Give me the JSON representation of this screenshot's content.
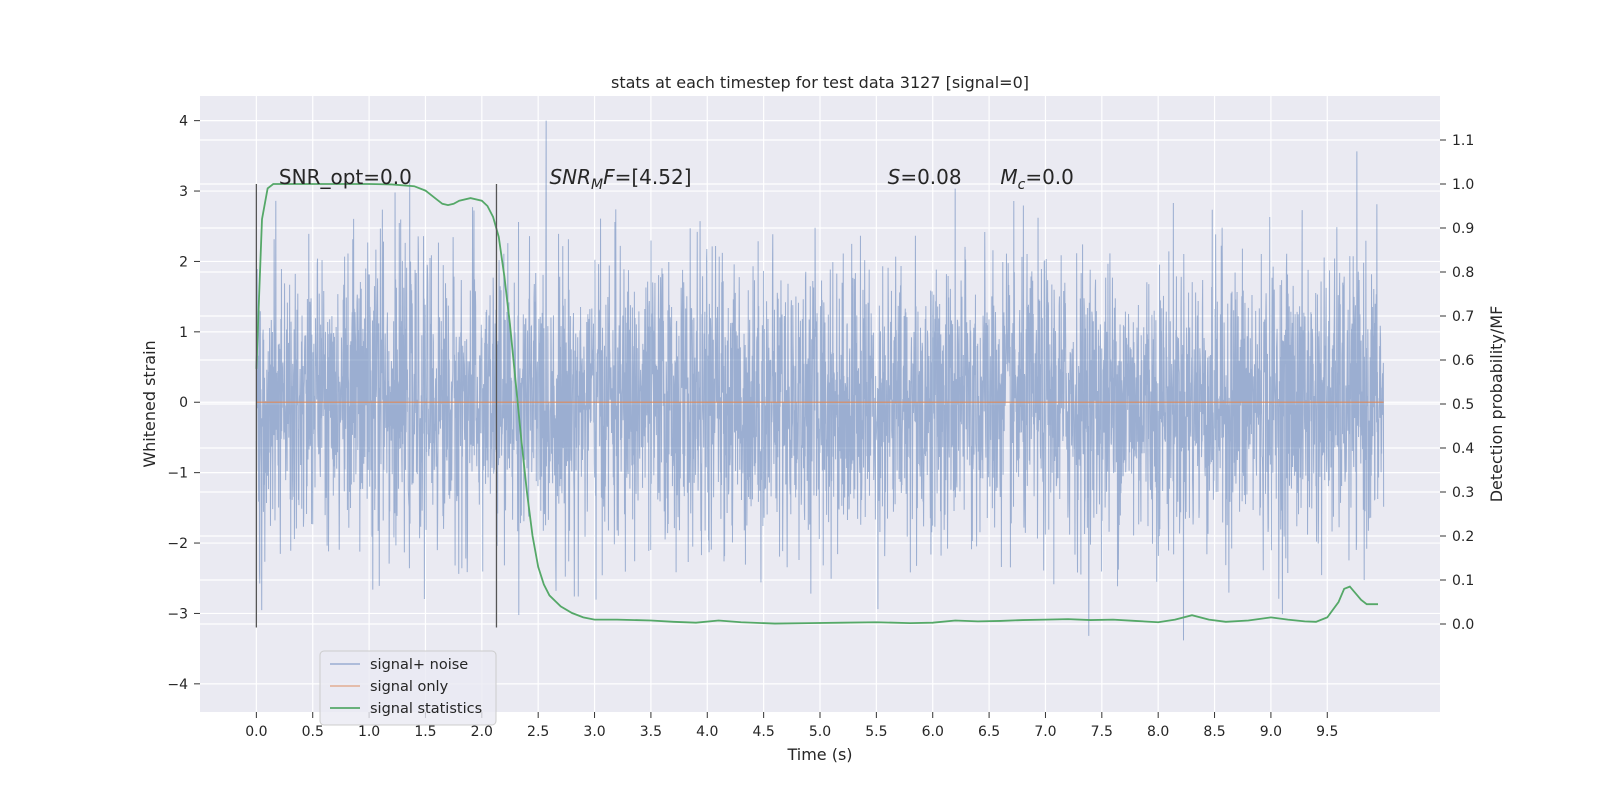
{
  "chart_data": {
    "type": "line",
    "title": "stats at each timestep for test data 3127 [signal=0]",
    "xlabel": "Time (s)",
    "ylabel": "Whitened strain",
    "ylabel_right": "Detection probability/MF",
    "xlim": [
      -0.5,
      10.5
    ],
    "ylim": [
      -4.4,
      4.35
    ],
    "ylim_right": [
      -0.2,
      1.2
    ],
    "x_ticks": [
      "0.0",
      "0.5",
      "1.0",
      "1.5",
      "2.0",
      "2.5",
      "3.0",
      "3.5",
      "4.0",
      "4.5",
      "5.0",
      "5.5",
      "6.0",
      "6.5",
      "7.0",
      "7.5",
      "8.0",
      "8.5",
      "9.0",
      "9.5"
    ],
    "y_ticks": [
      "4",
      "3",
      "2",
      "1",
      "0",
      "−1",
      "−2",
      "−3",
      "−4"
    ],
    "y_ticks_right": [
      "1.1",
      "1.0",
      "0.9",
      "0.8",
      "0.7",
      "0.6",
      "0.5",
      "0.4",
      "0.3",
      "0.2",
      "0.1",
      "0.0"
    ],
    "grid": true,
    "legend_placement": "lower-left",
    "annotations": [
      {
        "parts": [
          {
            "text": "SNR_opt=0.0",
            "italic": false
          }
        ],
        "x": 0.2,
        "y": 3.1
      },
      {
        "parts": [
          {
            "text": "SNR",
            "italic": true
          },
          {
            "text": "M",
            "italic": true,
            "sub": true
          },
          {
            "text": "F",
            "italic": true
          },
          {
            "text": "=[4.52]",
            "italic": false
          }
        ],
        "x": 2.6,
        "y": 3.1
      },
      {
        "parts": [
          {
            "text": "S",
            "italic": true
          },
          {
            "text": "=0.08",
            "italic": false
          }
        ],
        "x": 5.6,
        "y": 3.1
      },
      {
        "parts": [
          {
            "text": "M",
            "italic": true
          },
          {
            "text": "c",
            "italic": true,
            "sub": true
          },
          {
            "text": "=0.0",
            "italic": false
          }
        ],
        "x": 6.6,
        "y": 3.1
      }
    ],
    "vlines": [
      {
        "x": 0.0,
        "ymin": -3.2,
        "ymax": 3.1
      },
      {
        "x": 2.13,
        "ymin": -3.2,
        "ymax": 3.1
      }
    ],
    "series": [
      {
        "name": "signal+ noise",
        "color": "#4c72b0",
        "axis": "left",
        "style": "noise",
        "x_range": [
          0.0,
          10.0
        ],
        "sigma": 1.0
      },
      {
        "name": "signal only",
        "color": "#dd8452",
        "axis": "left",
        "x": [
          0.0,
          10.0
        ],
        "y": [
          0.0,
          0.0
        ]
      },
      {
        "name": "signal statistics",
        "color": "#55a868",
        "axis": "right",
        "x": [
          0.0,
          0.05,
          0.1,
          0.15,
          0.2,
          0.3,
          0.5,
          0.8,
          1.0,
          1.2,
          1.4,
          1.5,
          1.6,
          1.65,
          1.7,
          1.75,
          1.8,
          1.9,
          2.0,
          2.05,
          2.1,
          2.15,
          2.2,
          2.25,
          2.3,
          2.35,
          2.4,
          2.45,
          2.5,
          2.55,
          2.6,
          2.7,
          2.8,
          2.9,
          3.0,
          3.2,
          3.5,
          3.7,
          3.9,
          4.1,
          4.3,
          4.6,
          4.9,
          5.2,
          5.5,
          5.8,
          6.0,
          6.2,
          6.4,
          6.6,
          6.8,
          7.0,
          7.2,
          7.4,
          7.6,
          7.8,
          8.0,
          8.15,
          8.3,
          8.45,
          8.6,
          8.8,
          9.0,
          9.15,
          9.3,
          9.4,
          9.5,
          9.6,
          9.65,
          9.7,
          9.75,
          9.8,
          9.85,
          9.9,
          9.95
        ],
        "y": [
          0.58,
          0.92,
          0.99,
          1.0,
          1.0,
          1.0,
          1.0,
          1.0,
          1.0,
          0.999,
          0.995,
          0.985,
          0.965,
          0.955,
          0.952,
          0.955,
          0.962,
          0.968,
          0.962,
          0.95,
          0.925,
          0.88,
          0.79,
          0.68,
          0.55,
          0.42,
          0.3,
          0.2,
          0.13,
          0.09,
          0.065,
          0.04,
          0.025,
          0.015,
          0.01,
          0.01,
          0.008,
          0.005,
          0.003,
          0.008,
          0.004,
          0.001,
          0.002,
          0.003,
          0.004,
          0.002,
          0.003,
          0.008,
          0.006,
          0.007,
          0.009,
          0.01,
          0.011,
          0.009,
          0.01,
          0.007,
          0.004,
          0.01,
          0.02,
          0.01,
          0.005,
          0.008,
          0.015,
          0.01,
          0.006,
          0.005,
          0.015,
          0.05,
          0.08,
          0.085,
          0.07,
          0.055,
          0.045,
          0.045,
          0.045
        ]
      }
    ]
  }
}
